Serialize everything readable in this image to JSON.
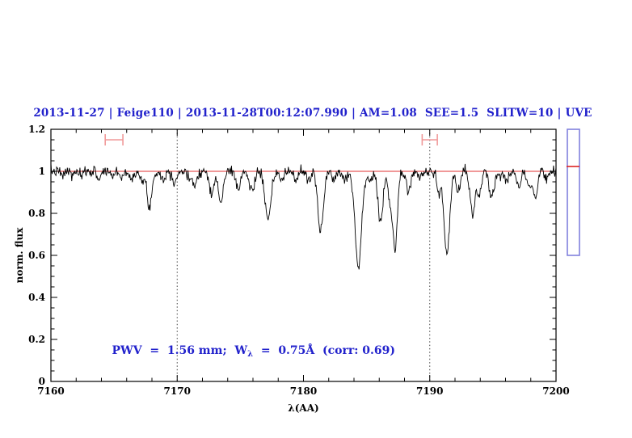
{
  "title": "2013-11-27 | Feige110 | 2013-11-28T00:12:07.990 | AM=1.08  SEE=1.5  SLITW=10 | UVE",
  "annotation": {
    "pre": "PWV  =  1.56 mm;  W",
    "sub": "λ",
    "post": "  =  0.75Å  (corr: 0.69)"
  },
  "colors": {
    "title_blue": "#2222cc",
    "annotation_blue": "#2222cc",
    "spectrum_black": "#000000",
    "continuum_red": "#e03030",
    "marker_salmon": "#f09a9a",
    "colorbar_blue": "#8080dd",
    "colorbar_red": "#dd2222",
    "dotted_gray": "#444444",
    "frame_black": "#000000"
  },
  "chart_data": {
    "type": "line",
    "title": "2013-11-27 | Feige110 | 2013-11-28T00:12:07.990 | AM=1.08  SEE=1.5  SLITW=10 | UVE",
    "xlabel": "λ(AA)",
    "ylabel": "norm. flux",
    "xlim": [
      7160,
      7200
    ],
    "ylim": [
      0,
      1.2
    ],
    "grid": false,
    "x_ticks": {
      "values": [
        7160,
        7170,
        7180,
        7190,
        7200
      ],
      "labels": [
        "7160",
        "7170",
        "7180",
        "7190",
        "7200"
      ],
      "minor_step": 2
    },
    "y_ticks": {
      "values": [
        0,
        0.2,
        0.4,
        0.6,
        0.8,
        1,
        1.2
      ],
      "labels": [
        "0",
        "0.2",
        "0.4",
        "0.6",
        "0.8",
        "1",
        "1.2"
      ],
      "minor_step": 0.05
    },
    "continuum_level": 1.0,
    "noise_sigma": 0.013,
    "sample_step": 0.05,
    "dotted_vlines": [
      7170,
      7190
    ],
    "absorption_lines": [
      {
        "w": 7160.9,
        "d": 0.025,
        "s": 0.12
      },
      {
        "w": 7161.7,
        "d": 0.022,
        "s": 0.12
      },
      {
        "w": 7162.4,
        "d": 0.03,
        "s": 0.13
      },
      {
        "w": 7163.8,
        "d": 0.035,
        "s": 0.14
      },
      {
        "w": 7164.9,
        "d": 0.025,
        "s": 0.12
      },
      {
        "w": 7165.6,
        "d": 0.03,
        "s": 0.12
      },
      {
        "w": 7166.3,
        "d": 0.04,
        "s": 0.14
      },
      {
        "w": 7167.2,
        "d": 0.055,
        "s": 0.14
      },
      {
        "w": 7167.8,
        "d": 0.165,
        "s": 0.2
      },
      {
        "w": 7168.9,
        "d": 0.045,
        "s": 0.14
      },
      {
        "w": 7169.8,
        "d": 0.05,
        "s": 0.16
      },
      {
        "w": 7170.9,
        "d": 0.04,
        "s": 0.14
      },
      {
        "w": 7171.4,
        "d": 0.065,
        "s": 0.16
      },
      {
        "w": 7172.75,
        "d": 0.105,
        "s": 0.18
      },
      {
        "w": 7173.45,
        "d": 0.155,
        "s": 0.18
      },
      {
        "w": 7174.85,
        "d": 0.08,
        "s": 0.18
      },
      {
        "w": 7175.9,
        "d": 0.095,
        "s": 0.2
      },
      {
        "w": 7177.2,
        "d": 0.235,
        "s": 0.24
      },
      {
        "w": 7178.3,
        "d": 0.05,
        "s": 0.15
      },
      {
        "w": 7179.4,
        "d": 0.04,
        "s": 0.15
      },
      {
        "w": 7180.4,
        "d": 0.045,
        "s": 0.15
      },
      {
        "w": 7181.35,
        "d": 0.285,
        "s": 0.22
      },
      {
        "w": 7182.4,
        "d": 0.04,
        "s": 0.15
      },
      {
        "w": 7183.3,
        "d": 0.04,
        "s": 0.15
      },
      {
        "w": 7184.35,
        "d": 0.45,
        "s": 0.26
      },
      {
        "w": 7185.3,
        "d": 0.05,
        "s": 0.14
      },
      {
        "w": 7186.1,
        "d": 0.25,
        "s": 0.2
      },
      {
        "w": 7186.85,
        "d": 0.14,
        "s": 0.14
      },
      {
        "w": 7187.25,
        "d": 0.375,
        "s": 0.18
      },
      {
        "w": 7188.3,
        "d": 0.09,
        "s": 0.18
      },
      {
        "w": 7189.2,
        "d": 0.04,
        "s": 0.14
      },
      {
        "w": 7190.7,
        "d": 0.095,
        "s": 0.16
      },
      {
        "w": 7191.35,
        "d": 0.4,
        "s": 0.22
      },
      {
        "w": 7192.25,
        "d": 0.1,
        "s": 0.16
      },
      {
        "w": 7193.4,
        "d": 0.2,
        "s": 0.2
      },
      {
        "w": 7193.95,
        "d": 0.12,
        "s": 0.15
      },
      {
        "w": 7194.9,
        "d": 0.125,
        "s": 0.2
      },
      {
        "w": 7196.1,
        "d": 0.05,
        "s": 0.15
      },
      {
        "w": 7197.1,
        "d": 0.075,
        "s": 0.16
      },
      {
        "w": 7197.85,
        "d": 0.07,
        "s": 0.14
      },
      {
        "w": 7198.35,
        "d": 0.125,
        "s": 0.18
      },
      {
        "w": 7199.2,
        "d": 0.04,
        "s": 0.13
      }
    ],
    "range_markers": [
      {
        "center": 7165.0,
        "half_width": 0.7,
        "y": 1.15,
        "cap_half_height": 0.027
      },
      {
        "center": 7190.0,
        "half_width": 0.6,
        "y": 1.15,
        "cap_half_height": 0.027
      }
    ],
    "colorbar": {
      "marker_fraction_from_top": 0.295
    }
  }
}
